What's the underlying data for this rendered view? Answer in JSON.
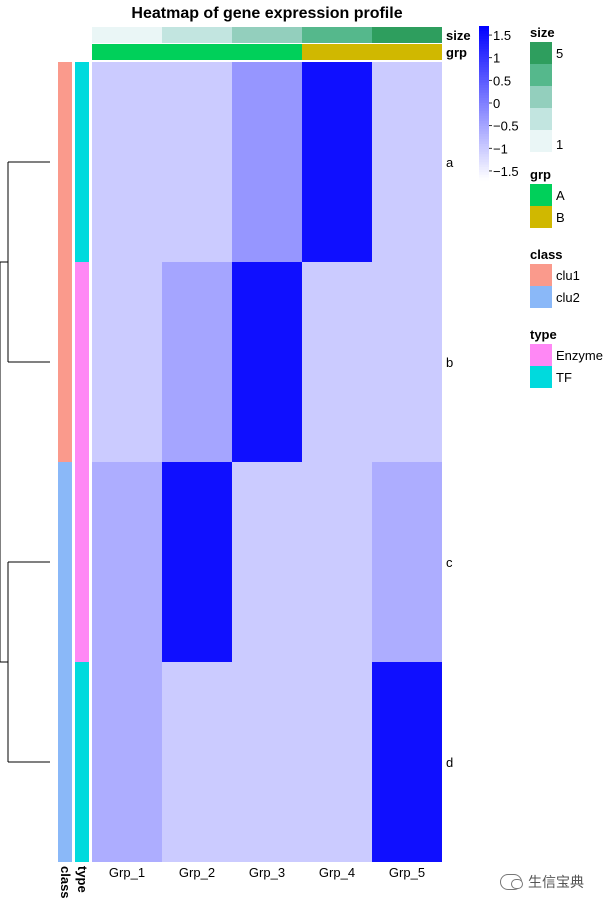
{
  "chart_data": {
    "type": "heatmap",
    "title": "Heatmap of gene expression profile",
    "columns": [
      "Grp_1",
      "Grp_2",
      "Grp_3",
      "Grp_4",
      "Grp_5"
    ],
    "rows": [
      "a",
      "b",
      "c",
      "d"
    ],
    "values": [
      [
        -1.0,
        -1.0,
        -0.3,
        1.5,
        -1.0
      ],
      [
        -1.0,
        -0.5,
        1.5,
        -1.0,
        -1.0
      ],
      [
        -0.6,
        1.5,
        -1.0,
        -1.0,
        -0.6
      ],
      [
        -0.6,
        -1.0,
        -1.0,
        -1.0,
        1.5
      ]
    ],
    "color_scale": {
      "min": -1.7,
      "max": 1.7,
      "low_color": "#ffffff",
      "high_color": "#0000ff"
    },
    "colorbar_ticks": [
      "1.5",
      "1",
      "0.5",
      "0",
      "−0.5",
      "−1",
      "−1.5"
    ],
    "colorbar_tick_values": [
      1.5,
      1,
      0.5,
      0,
      -0.5,
      -1,
      -1.5
    ],
    "column_annotations": [
      {
        "name": "size",
        "values": [
          1,
          2,
          3,
          4,
          5
        ]
      },
      {
        "name": "grp",
        "values": [
          "A",
          "A",
          "A",
          "B",
          "B"
        ]
      }
    ],
    "row_annotations": [
      {
        "name": "class",
        "values": [
          "clu1",
          "clu1",
          "clu2",
          "clu2"
        ]
      },
      {
        "name": "type",
        "values": [
          "TF",
          "Enzyme",
          "Enzyme",
          "TF"
        ]
      }
    ],
    "dendrogram": "((a,b),(c,d))",
    "legends": [
      {
        "title": "size",
        "labels": [
          "5",
          "1"
        ],
        "scale": [
          {
            "value": 5,
            "color": "#2e9e5e"
          },
          {
            "value": 4,
            "color": "#55b88c"
          },
          {
            "value": 3,
            "color": "#93cfbd"
          },
          {
            "value": 2,
            "color": "#c2e5e0"
          },
          {
            "value": 1,
            "color": "#eaf6f6"
          }
        ]
      },
      {
        "title": "grp",
        "items": [
          {
            "label": "A",
            "color": "#00d05a"
          },
          {
            "label": "B",
            "color": "#d0b800"
          }
        ]
      },
      {
        "title": "class",
        "items": [
          {
            "label": "clu1",
            "color": "#fa9a8c"
          },
          {
            "label": "clu2",
            "color": "#8ab8f8"
          }
        ]
      },
      {
        "title": "type",
        "items": [
          {
            "label": "Enzyme",
            "color": "#ff88f5"
          },
          {
            "label": "TF",
            "color": "#00dadd"
          }
        ]
      }
    ]
  },
  "watermark": {
    "text": "生信宝典"
  }
}
